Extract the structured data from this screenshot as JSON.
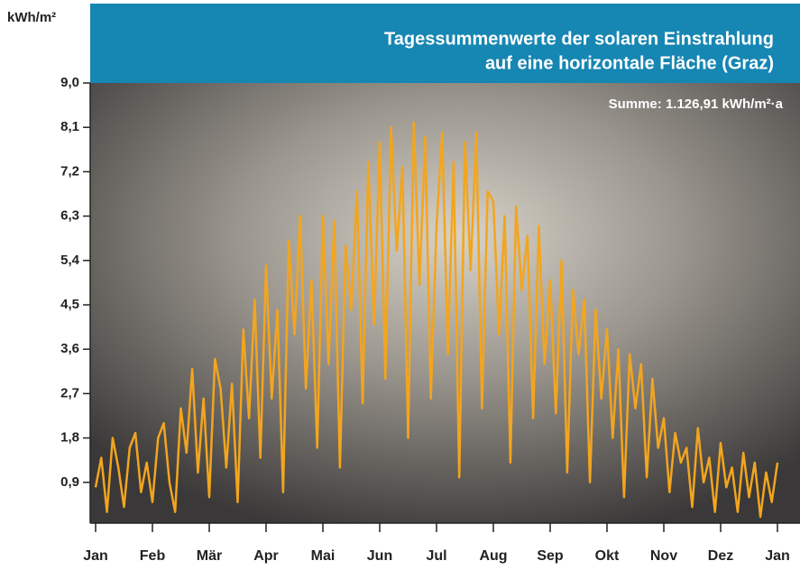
{
  "chart_data": {
    "type": "line",
    "title": [
      "Tagessummenwerte der solaren Einstrahlung",
      "auf eine horizontale Fläche (Graz)"
    ],
    "y_label": "kWh/m²",
    "annotation": "Summe: 1.126,91 kWh/m²·a",
    "categories": [
      "Jan",
      null,
      null,
      null,
      null,
      null,
      null,
      null,
      null,
      null,
      "Feb",
      null,
      null,
      null,
      null,
      null,
      null,
      null,
      null,
      null,
      "Mär",
      null,
      null,
      null,
      null,
      null,
      null,
      null,
      null,
      null,
      "Apr",
      null,
      null,
      null,
      null,
      null,
      null,
      null,
      null,
      null,
      "Mai",
      null,
      null,
      null,
      null,
      null,
      null,
      null,
      null,
      null,
      "Jun",
      null,
      null,
      null,
      null,
      null,
      null,
      null,
      null,
      null,
      "Jul",
      null,
      null,
      null,
      null,
      null,
      null,
      null,
      null,
      null,
      "Aug",
      null,
      null,
      null,
      null,
      null,
      null,
      null,
      null,
      null,
      "Sep",
      null,
      null,
      null,
      null,
      null,
      null,
      null,
      null,
      null,
      "Okt",
      null,
      null,
      null,
      null,
      null,
      null,
      null,
      null,
      null,
      "Nov",
      null,
      null,
      null,
      null,
      null,
      null,
      null,
      null,
      null,
      "Dez",
      null,
      null,
      null,
      null,
      null,
      null,
      null,
      null,
      null,
      "Jan"
    ],
    "values": [
      0.8,
      1.4,
      0.3,
      1.8,
      1.2,
      0.4,
      1.6,
      1.9,
      0.7,
      1.3,
      0.5,
      1.8,
      2.1,
      0.9,
      0.3,
      2.4,
      1.5,
      3.2,
      1.1,
      2.6,
      0.6,
      3.4,
      2.8,
      1.2,
      2.9,
      0.5,
      4.0,
      2.2,
      4.6,
      1.4,
      5.3,
      2.6,
      4.4,
      0.7,
      5.8,
      3.9,
      6.3,
      2.8,
      5.0,
      1.6,
      6.3,
      3.3,
      6.2,
      1.2,
      5.7,
      4.4,
      6.8,
      2.5,
      7.4,
      4.1,
      7.8,
      3.0,
      8.1,
      5.6,
      7.3,
      1.8,
      8.2,
      4.9,
      7.9,
      2.6,
      6.1,
      8.0,
      3.5,
      7.4,
      1.0,
      7.8,
      5.2,
      8.0,
      2.4,
      6.8,
      6.6,
      3.9,
      6.3,
      1.3,
      6.5,
      4.8,
      5.9,
      2.2,
      6.1,
      3.3,
      5.0,
      2.3,
      5.4,
      1.1,
      4.8,
      3.5,
      4.6,
      0.9,
      4.4,
      2.6,
      4.0,
      1.8,
      3.6,
      0.6,
      3.5,
      2.4,
      3.3,
      1.0,
      3.0,
      1.6,
      2.2,
      0.7,
      1.9,
      1.3,
      1.6,
      0.4,
      2.0,
      0.9,
      1.4,
      0.3,
      1.7,
      0.8,
      1.2,
      0.3,
      1.5,
      0.6,
      1.3,
      0.2,
      1.1,
      0.5,
      1.3
    ],
    "color": "#f2a51f",
    "ylim": [
      0,
      9
    ],
    "yticks": [
      {
        "value": 0.9,
        "label": "0,9"
      },
      {
        "value": 1.8,
        "label": "1,8"
      },
      {
        "value": 2.7,
        "label": "2,7"
      },
      {
        "value": 3.6,
        "label": "3,6"
      },
      {
        "value": 4.5,
        "label": "4,5"
      },
      {
        "value": 5.4,
        "label": "5,4"
      },
      {
        "value": 6.3,
        "label": "6,3"
      },
      {
        "value": 7.2,
        "label": "7,2"
      },
      {
        "value": 8.1,
        "label": "8,1"
      },
      {
        "value": 9,
        "label": "9,0"
      }
    ]
  }
}
